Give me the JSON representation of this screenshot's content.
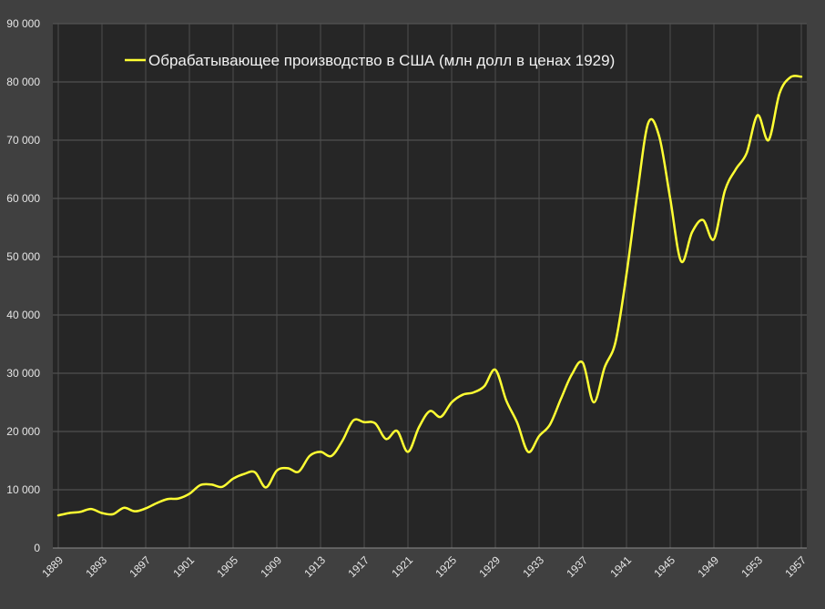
{
  "chart_data": {
    "type": "line",
    "ylim": [
      0,
      90000
    ],
    "yticks": [
      "0",
      "10 000",
      "20 000",
      "30 000",
      "40 000",
      "50 000",
      "60 000",
      "70 000",
      "80 000",
      "90 000"
    ],
    "xticks": [
      "1889",
      "1893",
      "1897",
      "1901",
      "1905",
      "1909",
      "1913",
      "1917",
      "1921",
      "1925",
      "1929",
      "1933",
      "1937",
      "1941",
      "1945",
      "1949",
      "1953",
      "1957"
    ],
    "grid": true,
    "legend_position": "top-left",
    "series": [
      {
        "name": "Обрабатывающее производство в США (млн долл в ценах 1929)",
        "color": "#ffff33",
        "x": [
          1889,
          1890,
          1891,
          1892,
          1893,
          1894,
          1895,
          1896,
          1897,
          1898,
          1899,
          1900,
          1901,
          1902,
          1903,
          1904,
          1905,
          1906,
          1907,
          1908,
          1909,
          1910,
          1911,
          1912,
          1913,
          1914,
          1915,
          1916,
          1917,
          1918,
          1919,
          1920,
          1921,
          1922,
          1923,
          1924,
          1925,
          1926,
          1927,
          1928,
          1929,
          1930,
          1931,
          1932,
          1933,
          1934,
          1935,
          1936,
          1937,
          1938,
          1939,
          1940,
          1941,
          1942,
          1943,
          1944,
          1945,
          1946,
          1947,
          1948,
          1949,
          1950,
          1951,
          1952,
          1953,
          1954,
          1955,
          1956,
          1957
        ],
        "values": [
          5600,
          6000,
          6200,
          6700,
          6000,
          5800,
          6900,
          6300,
          6800,
          7700,
          8400,
          8500,
          9300,
          10800,
          10900,
          10500,
          11900,
          12700,
          13000,
          10400,
          13300,
          13700,
          13100,
          15800,
          16500,
          15800,
          18400,
          21900,
          21600,
          21400,
          18700,
          20100,
          16500,
          20700,
          23500,
          22500,
          25000,
          26300,
          26700,
          27800,
          30600,
          25300,
          21500,
          16500,
          19200,
          21200,
          25600,
          29800,
          31800,
          25000,
          31000,
          35400,
          47000,
          61000,
          73000,
          70600,
          60000,
          49200,
          54200,
          56300,
          53000,
          61300,
          65000,
          67800,
          74300,
          70000,
          78000,
          80800,
          80900
        ]
      }
    ]
  }
}
